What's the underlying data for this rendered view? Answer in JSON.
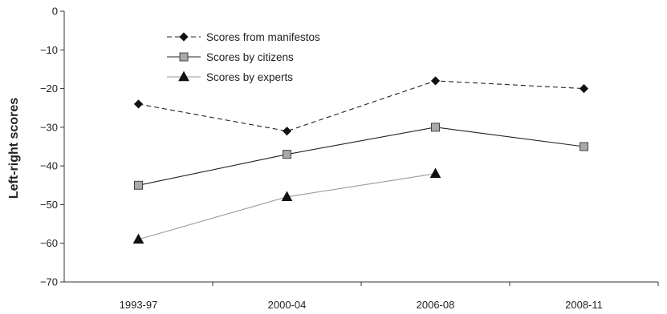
{
  "chart_data": {
    "type": "line",
    "title": "",
    "xlabel": "",
    "ylabel": "Left-right scores",
    "categories": [
      "1993-97",
      "2000-04",
      "2006-08",
      "2008-11"
    ],
    "ylim": [
      -70,
      0
    ],
    "yticks": [
      0,
      -10,
      -20,
      -30,
      -40,
      -50,
      -60,
      -70
    ],
    "ytick_labels": [
      "0",
      "−10",
      "−20",
      "−30",
      "−40",
      "−50",
      "−60",
      "−70"
    ],
    "grid": false,
    "legend_position": "top-left",
    "series": [
      {
        "name": "Scores from manifestos",
        "values": [
          -24,
          -31,
          -18,
          -20
        ],
        "marker": "diamond",
        "line_style": "dashed",
        "color": "#222222"
      },
      {
        "name": "Scores by citizens",
        "values": [
          -45,
          -37,
          -30,
          -35
        ],
        "marker": "square",
        "line_style": "solid",
        "color": "#222222",
        "marker_fill": "#a9a9a9"
      },
      {
        "name": "Scores by experts",
        "values": [
          -59,
          -48,
          -42,
          null
        ],
        "marker": "triangle",
        "line_style": "solid",
        "color": "#9a9a9a",
        "marker_fill": "#111111"
      }
    ]
  }
}
